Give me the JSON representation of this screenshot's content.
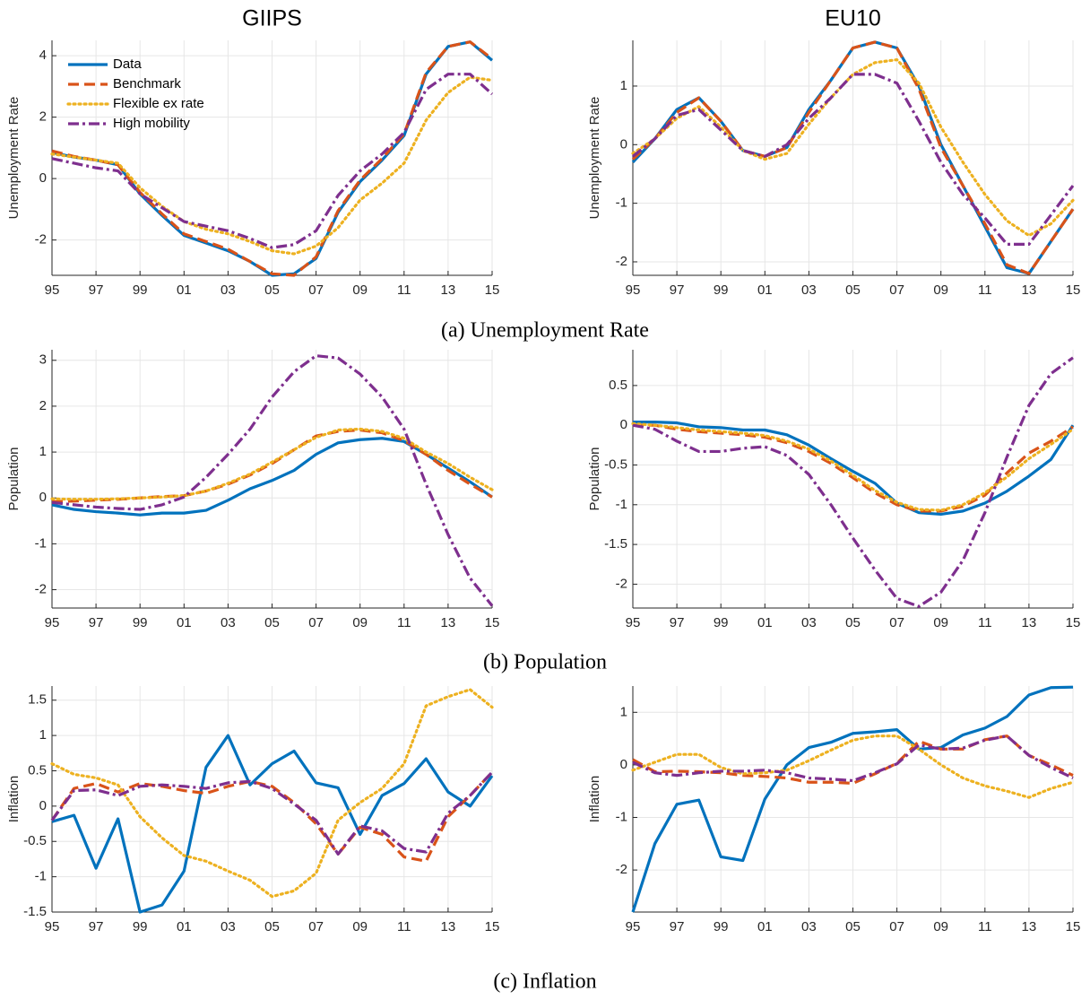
{
  "chart_data": [
    {
      "type": "line",
      "title": "GIIPS",
      "ylabel": "Unemployment Rate",
      "grid": true,
      "legend": "upper left",
      "categories": [
        "95",
        null,
        "97",
        null,
        "99",
        null,
        "01",
        null,
        "03",
        null,
        "05",
        null,
        "07",
        null,
        "09",
        null,
        "11",
        null,
        "13",
        null,
        "15"
      ],
      "ylim": [
        -3.15,
        4.5
      ],
      "yticks": [
        -2,
        0,
        2,
        4
      ],
      "series": [
        {
          "name": "Data",
          "color": "#0072BD",
          "linestyle": "solid",
          "values": [
            0.85,
            0.7,
            0.6,
            0.45,
            -0.5,
            -1.2,
            -1.85,
            -2.1,
            -2.35,
            -2.7,
            -3.15,
            -3.1,
            -2.6,
            -1.1,
            -0.1,
            0.6,
            1.4,
            3.4,
            4.3,
            4.45,
            3.85
          ]
        },
        {
          "name": "Benchmark",
          "color": "#D95319",
          "linestyle": "dashed",
          "values": [
            0.9,
            0.72,
            0.6,
            0.45,
            -0.45,
            -1.15,
            -1.8,
            -2.05,
            -2.3,
            -2.7,
            -3.1,
            -3.15,
            -2.55,
            -1.05,
            -0.05,
            0.65,
            1.45,
            3.45,
            4.3,
            4.45,
            3.9
          ]
        },
        {
          "name": "Flexible ex rate",
          "color": "#EDB120",
          "linestyle": "dotted",
          "values": [
            0.8,
            0.7,
            0.6,
            0.5,
            -0.3,
            -0.9,
            -1.4,
            -1.65,
            -1.8,
            -2.05,
            -2.35,
            -2.45,
            -2.2,
            -1.6,
            -0.7,
            -0.15,
            0.5,
            1.9,
            2.8,
            3.3,
            3.2
          ]
        },
        {
          "name": "High mobility",
          "color": "#7E2F8E",
          "linestyle": "dashdot",
          "values": [
            0.65,
            0.5,
            0.35,
            0.25,
            -0.5,
            -0.95,
            -1.4,
            -1.55,
            -1.7,
            -1.95,
            -2.25,
            -2.15,
            -1.7,
            -0.55,
            0.25,
            0.8,
            1.5,
            2.9,
            3.4,
            3.4,
            2.75
          ]
        }
      ]
    },
    {
      "type": "line",
      "title": "EU10",
      "ylabel": "Unemployment Rate",
      "grid": true,
      "categories": [
        "95",
        null,
        "97",
        null,
        "99",
        null,
        "01",
        null,
        "03",
        null,
        "05",
        null,
        "07",
        null,
        "09",
        null,
        "11",
        null,
        "13",
        null,
        "15"
      ],
      "ylim": [
        -2.23,
        1.78
      ],
      "yticks": [
        -2,
        -1,
        0,
        1
      ],
      "series": [
        {
          "color": "#0072BD",
          "linestyle": "solid",
          "values": [
            -0.3,
            0.1,
            0.6,
            0.8,
            0.4,
            -0.1,
            -0.2,
            -0.05,
            0.6,
            1.1,
            1.65,
            1.75,
            1.65,
            1.0,
            0.0,
            -0.7,
            -1.4,
            -2.1,
            -2.2,
            -1.65,
            -1.1
          ]
        },
        {
          "color": "#D95319",
          "linestyle": "dashed",
          "values": [
            -0.25,
            0.1,
            0.55,
            0.8,
            0.4,
            -0.1,
            -0.2,
            -0.05,
            0.55,
            1.1,
            1.65,
            1.75,
            1.65,
            0.95,
            -0.05,
            -0.7,
            -1.35,
            -2.05,
            -2.2,
            -1.65,
            -1.1
          ]
        },
        {
          "color": "#EDB120",
          "linestyle": "dotted",
          "values": [
            -0.15,
            0.1,
            0.45,
            0.65,
            0.3,
            -0.1,
            -0.25,
            -0.15,
            0.35,
            0.8,
            1.2,
            1.4,
            1.45,
            1.05,
            0.3,
            -0.3,
            -0.85,
            -1.3,
            -1.55,
            -1.35,
            -0.95
          ]
        },
        {
          "color": "#7E2F8E",
          "linestyle": "dashdot",
          "values": [
            -0.2,
            0.1,
            0.5,
            0.6,
            0.25,
            -0.1,
            -0.2,
            0.0,
            0.45,
            0.8,
            1.2,
            1.2,
            1.05,
            0.4,
            -0.3,
            -0.85,
            -1.25,
            -1.7,
            -1.7,
            -1.2,
            -0.7
          ]
        }
      ]
    },
    {
      "type": "line",
      "ylabel": "Population",
      "grid": true,
      "categories": [
        "95",
        null,
        "97",
        null,
        "99",
        null,
        "01",
        null,
        "03",
        null,
        "05",
        null,
        "07",
        null,
        "09",
        null,
        "11",
        null,
        "13",
        null,
        "15"
      ],
      "ylim": [
        -2.4,
        3.23
      ],
      "yticks": [
        -2,
        -1,
        0,
        1,
        2,
        3
      ],
      "series": [
        {
          "color": "#0072BD",
          "linestyle": "solid",
          "values": [
            -0.15,
            -0.25,
            -0.3,
            -0.33,
            -0.37,
            -0.33,
            -0.33,
            -0.27,
            -0.05,
            0.2,
            0.38,
            0.6,
            0.95,
            1.2,
            1.27,
            1.3,
            1.23,
            0.95,
            0.65,
            0.35,
            0.02
          ]
        },
        {
          "color": "#D95319",
          "linestyle": "dashed",
          "values": [
            -0.08,
            -0.07,
            -0.05,
            -0.03,
            0.0,
            0.03,
            0.05,
            0.15,
            0.3,
            0.5,
            0.75,
            1.05,
            1.35,
            1.45,
            1.48,
            1.42,
            1.25,
            0.95,
            0.6,
            0.3,
            0.02
          ]
        },
        {
          "color": "#EDB120",
          "linestyle": "dotted",
          "values": [
            -0.02,
            -0.03,
            -0.03,
            -0.02,
            0.0,
            0.02,
            0.05,
            0.15,
            0.32,
            0.52,
            0.78,
            1.05,
            1.32,
            1.48,
            1.5,
            1.45,
            1.3,
            1.0,
            0.75,
            0.45,
            0.18
          ]
        },
        {
          "color": "#7E2F8E",
          "linestyle": "dashdot",
          "values": [
            -0.1,
            -0.15,
            -0.2,
            -0.23,
            -0.25,
            -0.15,
            0.02,
            0.45,
            0.95,
            1.5,
            2.2,
            2.75,
            3.1,
            3.05,
            2.7,
            2.2,
            1.5,
            0.3,
            -0.8,
            -1.75,
            -2.35
          ]
        }
      ]
    },
    {
      "type": "line",
      "ylabel": "Population",
      "grid": true,
      "categories": [
        "95",
        null,
        "97",
        null,
        "99",
        null,
        "01",
        null,
        "03",
        null,
        "05",
        null,
        "07",
        null,
        "09",
        null,
        "11",
        null,
        "13",
        null,
        "15"
      ],
      "ylim": [
        -2.3,
        0.95
      ],
      "yticks": [
        -2,
        -1.5,
        -1,
        -0.5,
        0,
        0.5
      ],
      "series": [
        {
          "color": "#0072BD",
          "linestyle": "solid",
          "values": [
            0.04,
            0.04,
            0.03,
            -0.02,
            -0.03,
            -0.06,
            -0.06,
            -0.12,
            -0.25,
            -0.42,
            -0.58,
            -0.73,
            -0.98,
            -1.1,
            -1.12,
            -1.08,
            -0.98,
            -0.83,
            -0.64,
            -0.43,
            0.0
          ]
        },
        {
          "color": "#D95319",
          "linestyle": "dashed",
          "values": [
            0.0,
            0.0,
            -0.05,
            -0.08,
            -0.1,
            -0.12,
            -0.15,
            -0.22,
            -0.33,
            -0.48,
            -0.66,
            -0.85,
            -1.0,
            -1.08,
            -1.08,
            -1.02,
            -0.88,
            -0.6,
            -0.35,
            -0.2,
            -0.02
          ]
        },
        {
          "color": "#EDB120",
          "linestyle": "dotted",
          "values": [
            0.02,
            0.0,
            -0.03,
            -0.06,
            -0.08,
            -0.1,
            -0.13,
            -0.2,
            -0.3,
            -0.45,
            -0.63,
            -0.82,
            -0.97,
            -1.06,
            -1.07,
            -1.0,
            -0.85,
            -0.65,
            -0.42,
            -0.24,
            -0.05
          ]
        },
        {
          "color": "#7E2F8E",
          "linestyle": "dashdot",
          "values": [
            0.0,
            -0.05,
            -0.2,
            -0.33,
            -0.33,
            -0.29,
            -0.27,
            -0.38,
            -0.62,
            -1.0,
            -1.42,
            -1.82,
            -2.18,
            -2.28,
            -2.1,
            -1.7,
            -1.1,
            -0.4,
            0.25,
            0.65,
            0.85
          ]
        }
      ]
    },
    {
      "type": "line",
      "ylabel": "Inflation",
      "grid": true,
      "categories": [
        "95",
        null,
        "97",
        null,
        "99",
        null,
        "01",
        null,
        "03",
        null,
        "05",
        null,
        "07",
        null,
        "09",
        null,
        "11",
        null,
        "13",
        null,
        "15"
      ],
      "ylim": [
        -1.5,
        1.7
      ],
      "yticks": [
        -1.5,
        -1,
        -0.5,
        0,
        0.5,
        1,
        1.5
      ],
      "series": [
        {
          "color": "#0072BD",
          "linestyle": "solid",
          "values": [
            -0.22,
            -0.13,
            -0.88,
            -0.18,
            -1.5,
            -1.4,
            -0.92,
            0.55,
            1.0,
            0.3,
            0.6,
            0.78,
            0.33,
            0.26,
            -0.4,
            0.15,
            0.32,
            0.67,
            0.2,
            0.0,
            0.43
          ]
        },
        {
          "color": "#D95319",
          "linestyle": "dashed",
          "values": [
            -0.2,
            0.25,
            0.32,
            0.2,
            0.32,
            0.28,
            0.22,
            0.18,
            0.28,
            0.35,
            0.28,
            0.05,
            -0.25,
            -0.68,
            -0.3,
            -0.4,
            -0.72,
            -0.78,
            -0.15,
            0.15,
            0.48
          ]
        },
        {
          "color": "#EDB120",
          "linestyle": "dotted",
          "values": [
            0.6,
            0.45,
            0.4,
            0.3,
            -0.15,
            -0.45,
            -0.7,
            -0.78,
            -0.92,
            -1.05,
            -1.28,
            -1.2,
            -0.95,
            -0.2,
            0.05,
            0.25,
            0.6,
            1.42,
            1.55,
            1.65,
            1.4
          ]
        },
        {
          "color": "#7E2F8E",
          "linestyle": "dashdot",
          "values": [
            -0.2,
            0.22,
            0.23,
            0.15,
            0.28,
            0.3,
            0.28,
            0.25,
            0.33,
            0.35,
            0.25,
            0.03,
            -0.2,
            -0.68,
            -0.28,
            -0.35,
            -0.6,
            -0.65,
            -0.1,
            0.15,
            0.48
          ]
        }
      ]
    },
    {
      "type": "line",
      "ylabel": "Inflation",
      "grid": true,
      "categories": [
        "95",
        null,
        "97",
        null,
        "99",
        null,
        "01",
        null,
        "03",
        null,
        "05",
        null,
        "07",
        null,
        "09",
        null,
        "11",
        null,
        "13",
        null,
        "15"
      ],
      "ylim": [
        -2.8,
        1.5
      ],
      "yticks": [
        -2,
        -1,
        0,
        1
      ],
      "series": [
        {
          "color": "#0072BD",
          "linestyle": "solid",
          "values": [
            -2.8,
            -1.5,
            -0.75,
            -0.67,
            -1.75,
            -1.82,
            -0.65,
            0.0,
            0.33,
            0.43,
            0.6,
            0.63,
            0.67,
            0.3,
            0.33,
            0.57,
            0.7,
            0.92,
            1.33,
            1.47,
            1.48
          ]
        },
        {
          "color": "#D95319",
          "linestyle": "dashed",
          "values": [
            0.1,
            -0.13,
            -0.12,
            -0.13,
            -0.15,
            -0.2,
            -0.22,
            -0.25,
            -0.33,
            -0.33,
            -0.35,
            -0.17,
            0.03,
            0.45,
            0.3,
            0.3,
            0.48,
            0.55,
            0.18,
            0.0,
            -0.2
          ]
        },
        {
          "color": "#EDB120",
          "linestyle": "dotted",
          "values": [
            -0.1,
            0.05,
            0.2,
            0.2,
            -0.05,
            -0.17,
            -0.15,
            -0.1,
            0.08,
            0.28,
            0.47,
            0.55,
            0.55,
            0.3,
            0.0,
            -0.25,
            -0.4,
            -0.5,
            -0.62,
            -0.45,
            -0.33
          ]
        },
        {
          "color": "#7E2F8E",
          "linestyle": "dashdot",
          "values": [
            0.05,
            -0.15,
            -0.2,
            -0.15,
            -0.12,
            -0.12,
            -0.1,
            -0.15,
            -0.25,
            -0.27,
            -0.3,
            -0.15,
            0.02,
            0.38,
            0.3,
            0.32,
            0.47,
            0.55,
            0.18,
            -0.05,
            -0.25
          ]
        }
      ]
    }
  ],
  "captions": [
    "(a) Unemployment Rate",
    "(b) Population",
    "(c) Inflation"
  ]
}
